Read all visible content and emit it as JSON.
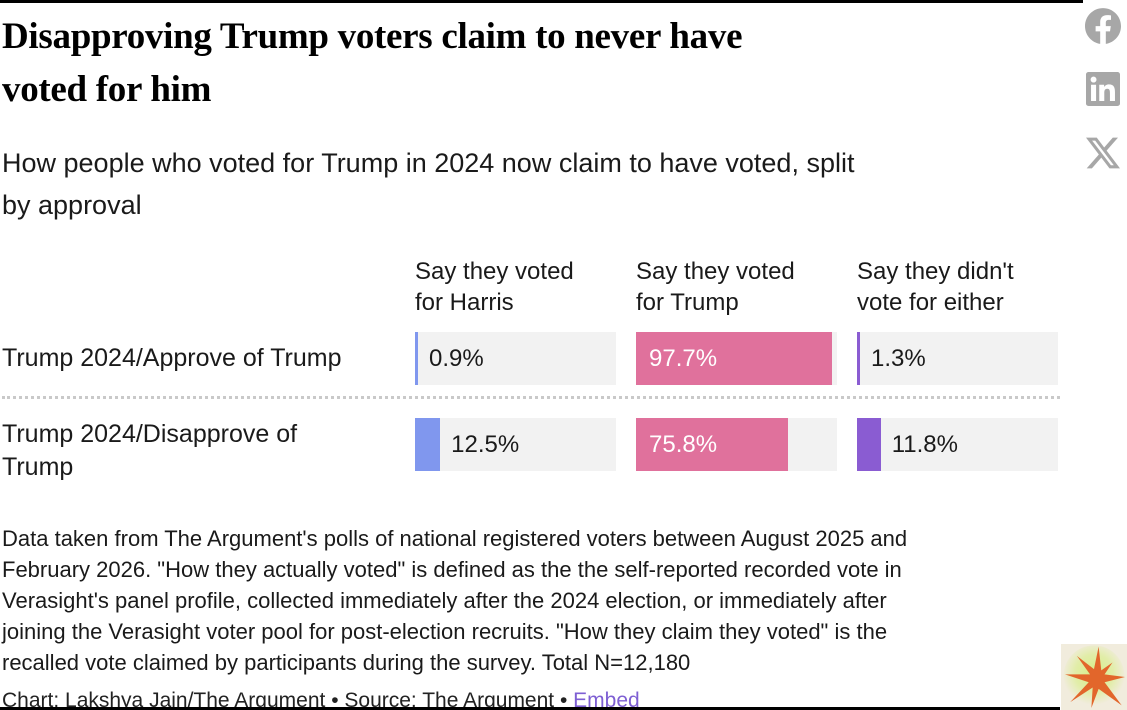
{
  "chart_data": {
    "type": "bar",
    "orientation": "horizontal",
    "title": "Disapproving Trump voters claim to never have\nvoted for him",
    "subtitle": "How people who voted for Trump in 2024 now claim to have voted, split\nby approval",
    "columns": [
      "Say they voted\nfor Harris",
      "Say they voted\nfor Trump",
      "Say they didn't\nvote for either"
    ],
    "rows": [
      {
        "label": "Trump 2024/Approve of Trump",
        "values": [
          0.9,
          97.7,
          1.3
        ],
        "value_labels": [
          "0.9%",
          "97.7%",
          "1.3%"
        ]
      },
      {
        "label": "Trump 2024/Disapprove of\nTrump",
        "values": [
          12.5,
          75.8,
          11.8
        ],
        "value_labels": [
          "12.5%",
          "75.8%",
          "11.8%"
        ]
      }
    ],
    "xlim": [
      0,
      100
    ],
    "unit": "%",
    "legend": "none",
    "colors": {
      "say_voted_harris": "#8097ee",
      "say_voted_trump": "#e0719c",
      "say_voted_neither": "#8a5cd2",
      "bar_track": "#f2f2f2"
    }
  },
  "notes": "Data taken from The Argument's polls of national registered voters between August 2025 and\nFebruary 2026. \"How they actually voted\" is defined as the the self-reported recorded vote in\nVerasight's panel profile, collected immediately after the 2024 election, or immediately after\njoining the Verasight voter pool for post-election recruits. \"How they claim they voted\" is the\nrecalled vote claimed by participants during the survey. Total N=12,180",
  "credit": {
    "chart_label": "Chart: Lakshya Jain/The Argument",
    "separator": "•",
    "source_label": "Source: The Argument",
    "embed_label": "Embed",
    "embed_color": "#7e5fd3"
  },
  "share": {
    "icons": [
      "facebook-icon",
      "linkedin-icon",
      "x-icon"
    ],
    "icon_color": "#a7a7a7"
  },
  "logo": {
    "name": "the-argument-starburst-logo",
    "burst_color": "#e2662b",
    "glow_color": "#d7ee86",
    "background_color": "#f1ecdd"
  }
}
